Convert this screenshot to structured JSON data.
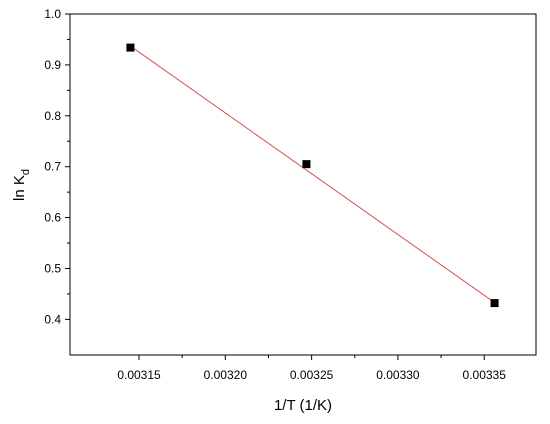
{
  "chart_data": {
    "type": "scatter",
    "title": "",
    "xlabel": "1/T (1/K)",
    "ylabel_main": "ln K",
    "ylabel_sub": "d",
    "xlim": [
      0.00311,
      0.00338
    ],
    "ylim": [
      0.33,
      1.0
    ],
    "x_ticks": [
      0.00315,
      0.0032,
      0.00325,
      0.0033,
      0.00335
    ],
    "x_tick_labels": [
      "0.00315",
      "0.00320",
      "0.00325",
      "0.00330",
      "0.00335"
    ],
    "y_ticks": [
      0.4,
      0.5,
      0.6,
      0.7,
      0.8,
      0.9,
      1.0
    ],
    "y_tick_labels": [
      "0.4",
      "0.5",
      "0.6",
      "0.7",
      "0.8",
      "0.9",
      "1.0"
    ],
    "grid": false,
    "series": [
      {
        "x": [
          0.003145,
          0.003247,
          0.003356
        ],
        "y": [
          0.934,
          0.705,
          0.432
        ],
        "marker": "square",
        "color": "#000000"
      }
    ],
    "fit_line": {
      "x": [
        0.003145,
        0.003356
      ],
      "y": [
        0.937,
        0.433
      ],
      "color": "#d9534f"
    }
  }
}
